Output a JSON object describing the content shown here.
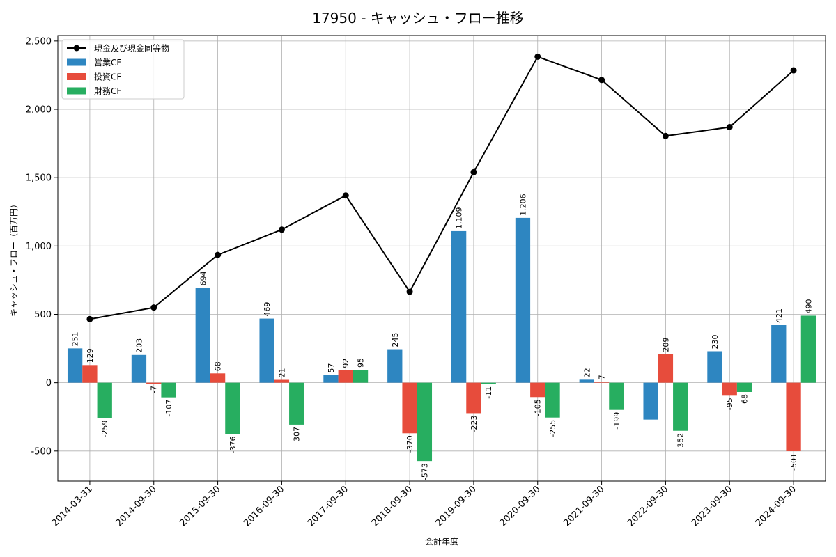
{
  "chart_data": {
    "type": "bar",
    "title": "17950 - キャッシュ・フロー推移",
    "xlabel": "会計年度",
    "ylabel": "キャッシュ・フロー（百万円）",
    "ylim": [
      -720,
      2540
    ],
    "yticks": [
      -500,
      0,
      500,
      1000,
      1500,
      2000,
      2500
    ],
    "ytick_labels": [
      "-500",
      "0",
      "500",
      "1,000",
      "1,500",
      "2,000",
      "2,500"
    ],
    "grid": true,
    "legend_position": "top-left",
    "categories": [
      "2014-03-31",
      "2014-09-30",
      "2015-09-30",
      "2016-09-30",
      "2017-09-30",
      "2018-09-30",
      "2019-09-30",
      "2020-09-30",
      "2021-09-30",
      "2022-09-30",
      "2023-09-30",
      "2024-09-30"
    ],
    "series": [
      {
        "name": "営業CF",
        "kind": "bar",
        "color": "#2e86c1",
        "values": [
          251,
          203,
          694,
          469,
          57,
          245,
          1109,
          1206,
          22,
          -270,
          230,
          421
        ],
        "labels": [
          "251",
          "203",
          "694",
          "469",
          "57",
          "245",
          "1,109",
          "1,206",
          "22",
          "",
          "230",
          "421"
        ]
      },
      {
        "name": "投資CF",
        "kind": "bar",
        "color": "#e74c3c",
        "values": [
          129,
          -7,
          68,
          21,
          92,
          -370,
          -223,
          -105,
          7,
          209,
          -95,
          -501
        ],
        "labels": [
          "129",
          "-7",
          "68",
          "21",
          "92",
          "-370",
          "-223",
          "-105",
          "7",
          "209",
          "-95",
          "-501"
        ]
      },
      {
        "name": "財務CF",
        "kind": "bar",
        "color": "#27ae60",
        "values": [
          -259,
          -107,
          -376,
          -307,
          95,
          -573,
          -11,
          -255,
          -199,
          -352,
          -68,
          490
        ],
        "labels": [
          "-259",
          "-107",
          "-376",
          "-307",
          "95",
          "-573",
          "-11",
          "-255",
          "-199",
          "-352",
          "-68",
          "490"
        ]
      },
      {
        "name": "現金及び現金同等物",
        "kind": "line",
        "color": "#000000",
        "values": [
          465,
          550,
          935,
          1120,
          1370,
          665,
          1540,
          2385,
          2215,
          1805,
          1870,
          2285
        ]
      }
    ]
  }
}
